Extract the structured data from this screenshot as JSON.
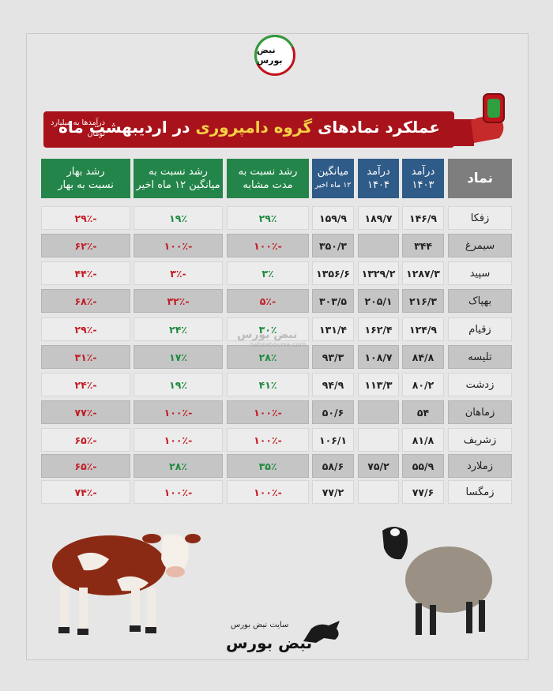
{
  "brand": {
    "logo_text": "نبض بورس",
    "footer_site": "سایت نبض بورس",
    "footer_brand": "نبض بورس",
    "watermark": "نبض بورس",
    "watermark_url": "nabzebourse.com"
  },
  "title": {
    "prefix": "عملکرد نمادهای",
    "highlight": "گروه دامپروری",
    "suffix": "در اردیبهشت ماه",
    "note": "درآمدها به میلیارد تومان"
  },
  "headers": {
    "symbol": "نماد",
    "rev1403_a": "درآمد",
    "rev1403_b": "۱۴۰۳",
    "rev1404_a": "درآمد",
    "rev1404_b": "۱۴۰۴",
    "avg_a": "میانگین",
    "avg_b": "۱۲ ماه اخیر",
    "growth_same_a": "رشد نسبت به",
    "growth_same_b": "مدت مشابه",
    "growth_avg_a": "رشد نسبت به",
    "growth_avg_b": "میانگین ۱۲ ماه اخیر",
    "growth_spring_a": "رشد بهار",
    "growth_spring_b": "نسبت به بهار"
  },
  "colors": {
    "title_bg": "#a8131b",
    "highlight": "#f7d046",
    "blue_header": "#2f5b88",
    "green_header": "#24854a",
    "grey_header": "#7e7e7e",
    "positive": "#1e8a3e",
    "negative": "#c21c24"
  },
  "rows": [
    {
      "symbol": "زفکا",
      "rev1403": "۱۴۶/۹",
      "rev1404": "۱۸۹/۷",
      "avg": "۱۵۹/۹",
      "g_same": "۲۹٪",
      "g_avg": "۱۹٪",
      "g_spring": "-۲۹٪"
    },
    {
      "symbol": "سیمرغ",
      "rev1403": "۳۴۴",
      "rev1404": "",
      "avg": "۳۵۰/۳",
      "g_same": "-۱۰۰٪",
      "g_avg": "-۱۰۰٪",
      "g_spring": "-۶۲٪"
    },
    {
      "symbol": "سپید",
      "rev1403": "۱۲۸۷/۳",
      "rev1404": "۱۳۲۹/۲",
      "avg": "۱۳۵۶/۶",
      "g_same": "۳٪",
      "g_avg": "-۳٪",
      "g_spring": "-۴۴٪"
    },
    {
      "symbol": "بهپاک",
      "rev1403": "۲۱۶/۳",
      "rev1404": "۲۰۵/۱",
      "avg": "۳۰۳/۵",
      "g_same": "-۵٪",
      "g_avg": "-۳۲٪",
      "g_spring": "-۶۸٪"
    },
    {
      "symbol": "زقیام",
      "rev1403": "۱۲۴/۹",
      "rev1404": "۱۶۲/۴",
      "avg": "۱۳۱/۴",
      "g_same": "۳۰٪",
      "g_avg": "۲۴٪",
      "g_spring": "-۲۹٪"
    },
    {
      "symbol": "تلیسه",
      "rev1403": "۸۴/۸",
      "rev1404": "۱۰۸/۷",
      "avg": "۹۳/۳",
      "g_same": "۲۸٪",
      "g_avg": "۱۷٪",
      "g_spring": "-۳۱٪"
    },
    {
      "symbol": "زدشت",
      "rev1403": "۸۰/۲",
      "rev1404": "۱۱۳/۳",
      "avg": "۹۴/۹",
      "g_same": "۴۱٪",
      "g_avg": "۱۹٪",
      "g_spring": "-۲۴٪"
    },
    {
      "symbol": "زماهان",
      "rev1403": "۵۴",
      "rev1404": "",
      "avg": "۵۰/۶",
      "g_same": "-۱۰۰٪",
      "g_avg": "-۱۰۰٪",
      "g_spring": "-۷۷٪"
    },
    {
      "symbol": "زشریف",
      "rev1403": "۸۱/۸",
      "rev1404": "",
      "avg": "۱۰۶/۱",
      "g_same": "-۱۰۰٪",
      "g_avg": "-۱۰۰٪",
      "g_spring": "-۶۵٪"
    },
    {
      "symbol": "زملارد",
      "rev1403": "۵۵/۹",
      "rev1404": "۷۵/۲",
      "avg": "۵۸/۶",
      "g_same": "۳۵٪",
      "g_avg": "۲۸٪",
      "g_spring": "-۶۵٪"
    },
    {
      "symbol": "زمگسا",
      "rev1403": "۷۷/۶",
      "rev1404": "",
      "avg": "۷۷/۲",
      "g_same": "-۱۰۰٪",
      "g_avg": "-۱۰۰٪",
      "g_spring": "-۷۴٪"
    }
  ]
}
